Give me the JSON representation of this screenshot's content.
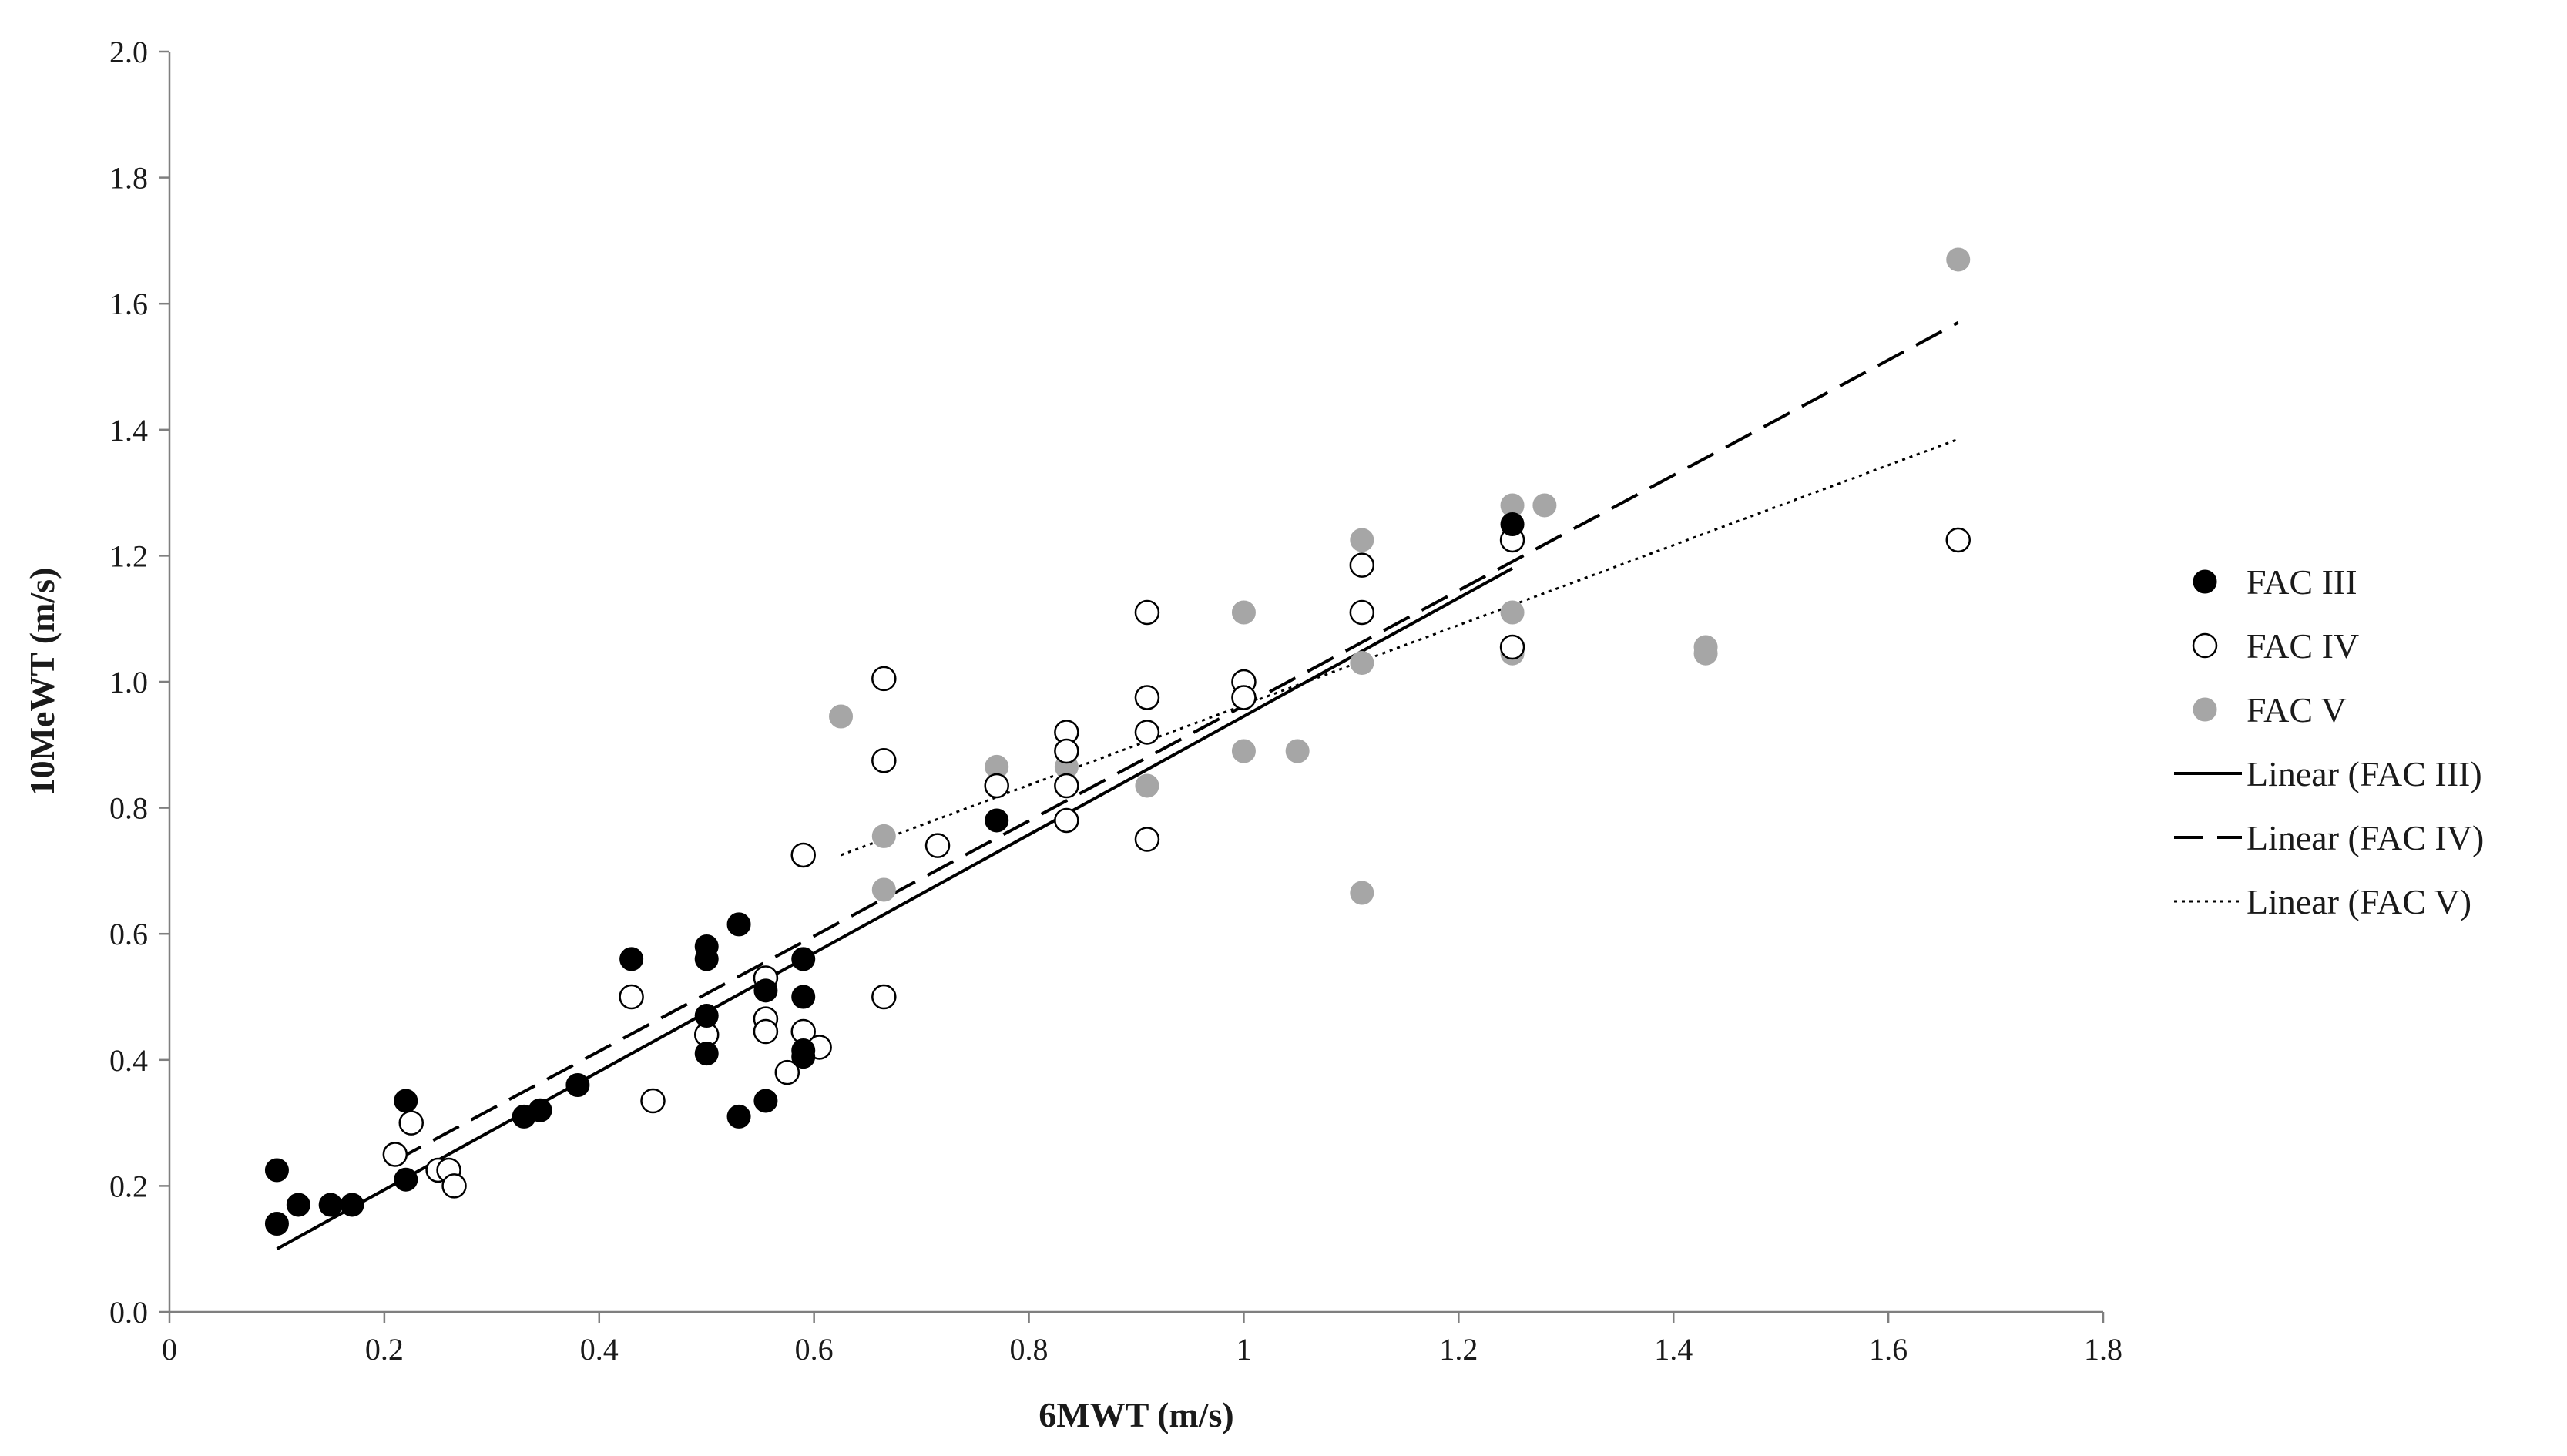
{
  "chart_data": {
    "type": "scatter",
    "title": "",
    "xlabel": "6MWT (m/s)",
    "ylabel": "10MeWT (m/s)",
    "xlim": [
      0,
      1.8
    ],
    "ylim": [
      0,
      2.0
    ],
    "x_ticks": [
      "0",
      "0.2",
      "0.4",
      "0.6",
      "0.8",
      "1",
      "1.2",
      "1.4",
      "1.6",
      "1.8"
    ],
    "y_ticks": [
      "0.0",
      "0.2",
      "0.4",
      "0.6",
      "0.8",
      "1.0",
      "1.2",
      "1.4",
      "1.6",
      "1.8",
      "2.0"
    ],
    "grid": false,
    "legend_position": "right",
    "series": [
      {
        "name": "FAC III",
        "marker": "filled-circle",
        "color": "#000000",
        "points": [
          [
            0.1,
            0.14
          ],
          [
            0.1,
            0.225
          ],
          [
            0.12,
            0.17
          ],
          [
            0.15,
            0.17
          ],
          [
            0.17,
            0.17
          ],
          [
            0.22,
            0.335
          ],
          [
            0.22,
            0.21
          ],
          [
            0.33,
            0.31
          ],
          [
            0.345,
            0.32
          ],
          [
            0.38,
            0.36
          ],
          [
            0.43,
            0.56
          ],
          [
            0.5,
            0.58
          ],
          [
            0.5,
            0.56
          ],
          [
            0.5,
            0.47
          ],
          [
            0.5,
            0.41
          ],
          [
            0.53,
            0.615
          ],
          [
            0.53,
            0.31
          ],
          [
            0.555,
            0.51
          ],
          [
            0.555,
            0.335
          ],
          [
            0.59,
            0.56
          ],
          [
            0.59,
            0.5
          ],
          [
            0.59,
            0.415
          ],
          [
            0.59,
            0.405
          ],
          [
            0.77,
            0.78
          ],
          [
            1.25,
            1.25
          ]
        ]
      },
      {
        "name": "FAC IV",
        "marker": "open-circle",
        "color": "#000000",
        "points": [
          [
            0.21,
            0.25
          ],
          [
            0.225,
            0.3
          ],
          [
            0.25,
            0.225
          ],
          [
            0.26,
            0.225
          ],
          [
            0.265,
            0.2
          ],
          [
            0.43,
            0.5
          ],
          [
            0.45,
            0.335
          ],
          [
            0.5,
            0.44
          ],
          [
            0.555,
            0.53
          ],
          [
            0.555,
            0.465
          ],
          [
            0.555,
            0.445
          ],
          [
            0.575,
            0.38
          ],
          [
            0.59,
            0.725
          ],
          [
            0.59,
            0.445
          ],
          [
            0.605,
            0.42
          ],
          [
            0.665,
            1.005
          ],
          [
            0.665,
            0.875
          ],
          [
            0.665,
            0.5
          ],
          [
            0.715,
            0.74
          ],
          [
            0.77,
            0.835
          ],
          [
            0.835,
            0.92
          ],
          [
            0.835,
            0.89
          ],
          [
            0.835,
            0.835
          ],
          [
            0.835,
            0.78
          ],
          [
            0.91,
            1.11
          ],
          [
            0.91,
            0.975
          ],
          [
            0.91,
            0.92
          ],
          [
            0.91,
            0.75
          ],
          [
            1.0,
            1.0
          ],
          [
            1.0,
            0.975
          ],
          [
            1.11,
            1.185
          ],
          [
            1.11,
            1.11
          ],
          [
            1.25,
            1.225
          ],
          [
            1.25,
            1.055
          ],
          [
            1.665,
            1.225
          ]
        ]
      },
      {
        "name": "FAC V",
        "marker": "filled-circle",
        "color": "#a6a6a6",
        "points": [
          [
            0.625,
            0.945
          ],
          [
            0.665,
            0.755
          ],
          [
            0.665,
            0.67
          ],
          [
            0.77,
            0.865
          ],
          [
            0.835,
            0.865
          ],
          [
            0.91,
            0.835
          ],
          [
            1.0,
            1.11
          ],
          [
            1.0,
            0.89
          ],
          [
            1.05,
            0.89
          ],
          [
            1.11,
            1.225
          ],
          [
            1.11,
            1.11
          ],
          [
            1.11,
            1.03
          ],
          [
            1.11,
            0.665
          ],
          [
            1.25,
            1.28
          ],
          [
            1.25,
            1.11
          ],
          [
            1.25,
            1.045
          ],
          [
            1.28,
            1.28
          ],
          [
            1.43,
            1.055
          ],
          [
            1.43,
            1.045
          ],
          [
            1.665,
            1.67
          ]
        ]
      }
    ],
    "trendlines": [
      {
        "name": "Linear (FAC III)",
        "style": "solid",
        "color": "#000000",
        "x": [
          0.1,
          1.25
        ],
        "y": [
          0.1,
          1.18
        ]
      },
      {
        "name": "Linear (FAC IV)",
        "style": "dashed",
        "color": "#000000",
        "x": [
          0.21,
          1.665
        ],
        "y": [
          0.24,
          1.57
        ]
      },
      {
        "name": "Linear (FAC V)",
        "style": "dotted",
        "color": "#000000",
        "x": [
          0.625,
          1.665
        ],
        "y": [
          0.725,
          1.385
        ]
      }
    ]
  }
}
